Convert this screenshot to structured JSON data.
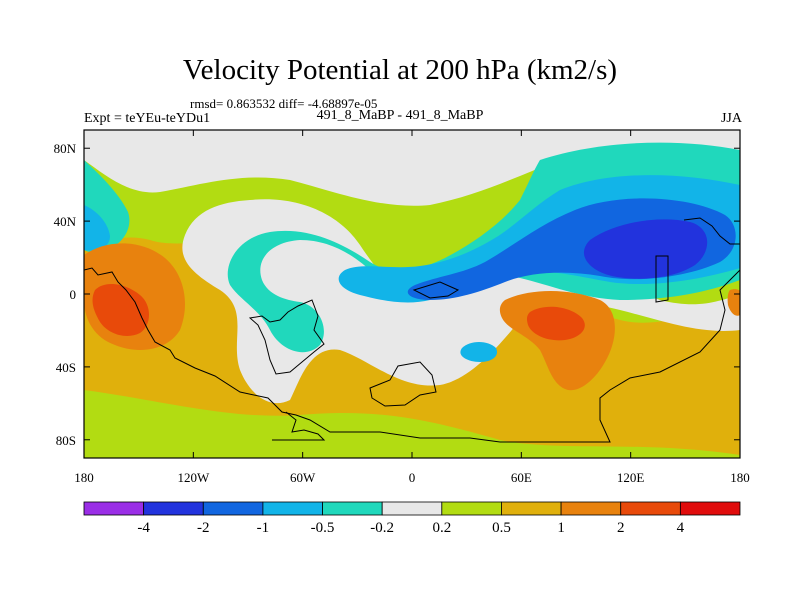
{
  "title": "Velocity Potential at 200 hPa (km2/s)",
  "stats": "rmsd= 0.863532 diff= -4.68897e-05",
  "left_label": "Expt = teYEu-teYDu1",
  "center_label": "491_8_MaBP - 491_8_MaBP",
  "right_label": "JJA",
  "chart_data": {
    "type": "heatmap",
    "title": "Velocity Potential at 200 hPa (km2/s)",
    "xlabel": "",
    "ylabel": "",
    "xlim": [
      -180,
      180
    ],
    "ylim": [
      -90,
      90
    ],
    "x_ticks": [
      {
        "value": -180,
        "label": "180"
      },
      {
        "value": -120,
        "label": "120W"
      },
      {
        "value": -60,
        "label": "60W"
      },
      {
        "value": 0,
        "label": "0"
      },
      {
        "value": 60,
        "label": "60E"
      },
      {
        "value": 120,
        "label": "120E"
      },
      {
        "value": 180,
        "label": "180"
      }
    ],
    "y_ticks": [
      {
        "value": 80,
        "label": "80N"
      },
      {
        "value": 40,
        "label": "40N"
      },
      {
        "value": 0,
        "label": "0"
      },
      {
        "value": -40,
        "label": "40S"
      },
      {
        "value": -80,
        "label": "80S"
      }
    ],
    "colorbar": {
      "labels": [
        "-4",
        "-2",
        "-1",
        "-0.5",
        "-0.2",
        "0.2",
        "0.5",
        "1",
        "2",
        "4"
      ],
      "colors": [
        "#9a2ee6",
        "#2233dd",
        "#1166e0",
        "#12b4e8",
        "#20d8bc",
        "#e8e8e8",
        "#b2dc12",
        "#e0b00c",
        "#e8820e",
        "#e84a0a",
        "#e00c0c"
      ]
    },
    "regions": [
      {
        "name": "strong negative center over south/east Asia",
        "lon": 125,
        "lat": 25,
        "value_range": "-4 to -2"
      },
      {
        "name": "negative area over tropical Atlantic / Africa",
        "lon": 0,
        "lat": 5,
        "value_range": "-1 to -0.5"
      },
      {
        "name": "positive maximum over central Pacific",
        "lon": -160,
        "lat": 0,
        "value_range": "2 to 4"
      },
      {
        "name": "positive maximum over Indian Ocean",
        "lon": 80,
        "lat": -10,
        "value_range": "2 to 4"
      },
      {
        "name": "positive band over southern oceans",
        "lon": 40,
        "lat": -65,
        "value_range": "0.5 to 1"
      }
    ]
  },
  "colors": {
    "c0": "#9a2ee6",
    "c1": "#2233dd",
    "c2": "#1166e0",
    "c3": "#12b4e8",
    "c4": "#20d8bc",
    "c5": "#e8e8e8",
    "c6": "#b2dc12",
    "c7": "#e0b00c",
    "c8": "#e8820e",
    "c9": "#e84a0a",
    "c10": "#e00c0c"
  }
}
